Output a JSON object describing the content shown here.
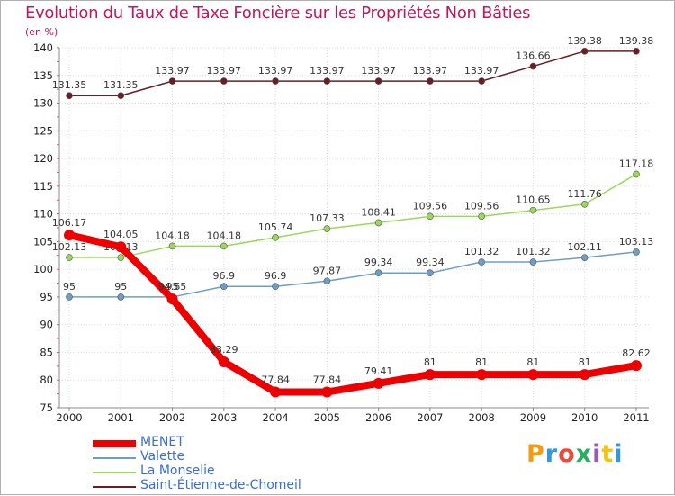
{
  "chart_data": {
    "type": "line",
    "title": "Evolution du Taux de Taxe Foncière sur les Propriétés Non Bâties",
    "ylabel": "(en %)",
    "xlabel": "",
    "ylim": [
      75,
      140
    ],
    "yticks": [
      "75",
      "80",
      "85",
      "90",
      "95",
      "100",
      "105",
      "110",
      "115",
      "120",
      "125",
      "130",
      "135",
      "140"
    ],
    "categories": [
      "2000",
      "2001",
      "2002",
      "2003",
      "2004",
      "2005",
      "2006",
      "2007",
      "2008",
      "2009",
      "2010",
      "2011"
    ],
    "grid": true,
    "series": [
      {
        "name": "Saint-Étienne-de-Chomeil",
        "color": "#6b1c24",
        "values": [
          131.35,
          131.35,
          133.97,
          133.97,
          133.97,
          133.97,
          133.97,
          133.97,
          133.97,
          136.66,
          139.38,
          139.38
        ],
        "labels": [
          "131.35",
          "131.35",
          "133.97",
          "133.97",
          "133.97",
          "133.97",
          "133.97",
          "133.97",
          "133.97",
          "136.66",
          "139.38",
          "139.38"
        ]
      },
      {
        "name": "La Monselie",
        "color": "#9ad85a",
        "values": [
          102.13,
          102.13,
          104.18,
          104.18,
          105.74,
          107.33,
          108.41,
          109.56,
          109.56,
          110.65,
          111.76,
          117.18
        ],
        "labels": [
          "102.13",
          "102.13",
          "104.18",
          "104.18",
          "105.74",
          "107.33",
          "108.41",
          "109.56",
          "109.56",
          "110.65",
          "111.76",
          "117.18"
        ]
      },
      {
        "name": "Valette",
        "color": "#6d9ec8",
        "values": [
          95,
          95,
          95,
          96.9,
          96.9,
          97.87,
          99.34,
          99.34,
          101.32,
          101.32,
          102.11,
          103.13
        ],
        "labels": [
          "95",
          "95",
          "95",
          "96.9",
          "96.9",
          "97.87",
          "99.34",
          "99.34",
          "101.32",
          "101.32",
          "102.11",
          "103.13"
        ]
      },
      {
        "name": "MENET",
        "color": "#ee0000",
        "values": [
          106.17,
          104.05,
          94.65,
          83.29,
          77.84,
          77.84,
          79.41,
          81,
          81,
          81,
          81,
          82.62
        ],
        "labels": [
          "106.17",
          "104.05",
          "94.65",
          "83.29",
          "77.84",
          "77.84",
          "79.41",
          "81",
          "81",
          "81",
          "81",
          "82.62"
        ]
      }
    ],
    "legend": [
      "MENET",
      "Valette",
      "La Monselie",
      "Saint-Étienne-de-Chomeil"
    ]
  },
  "logo": {
    "text": "Proxiti"
  }
}
